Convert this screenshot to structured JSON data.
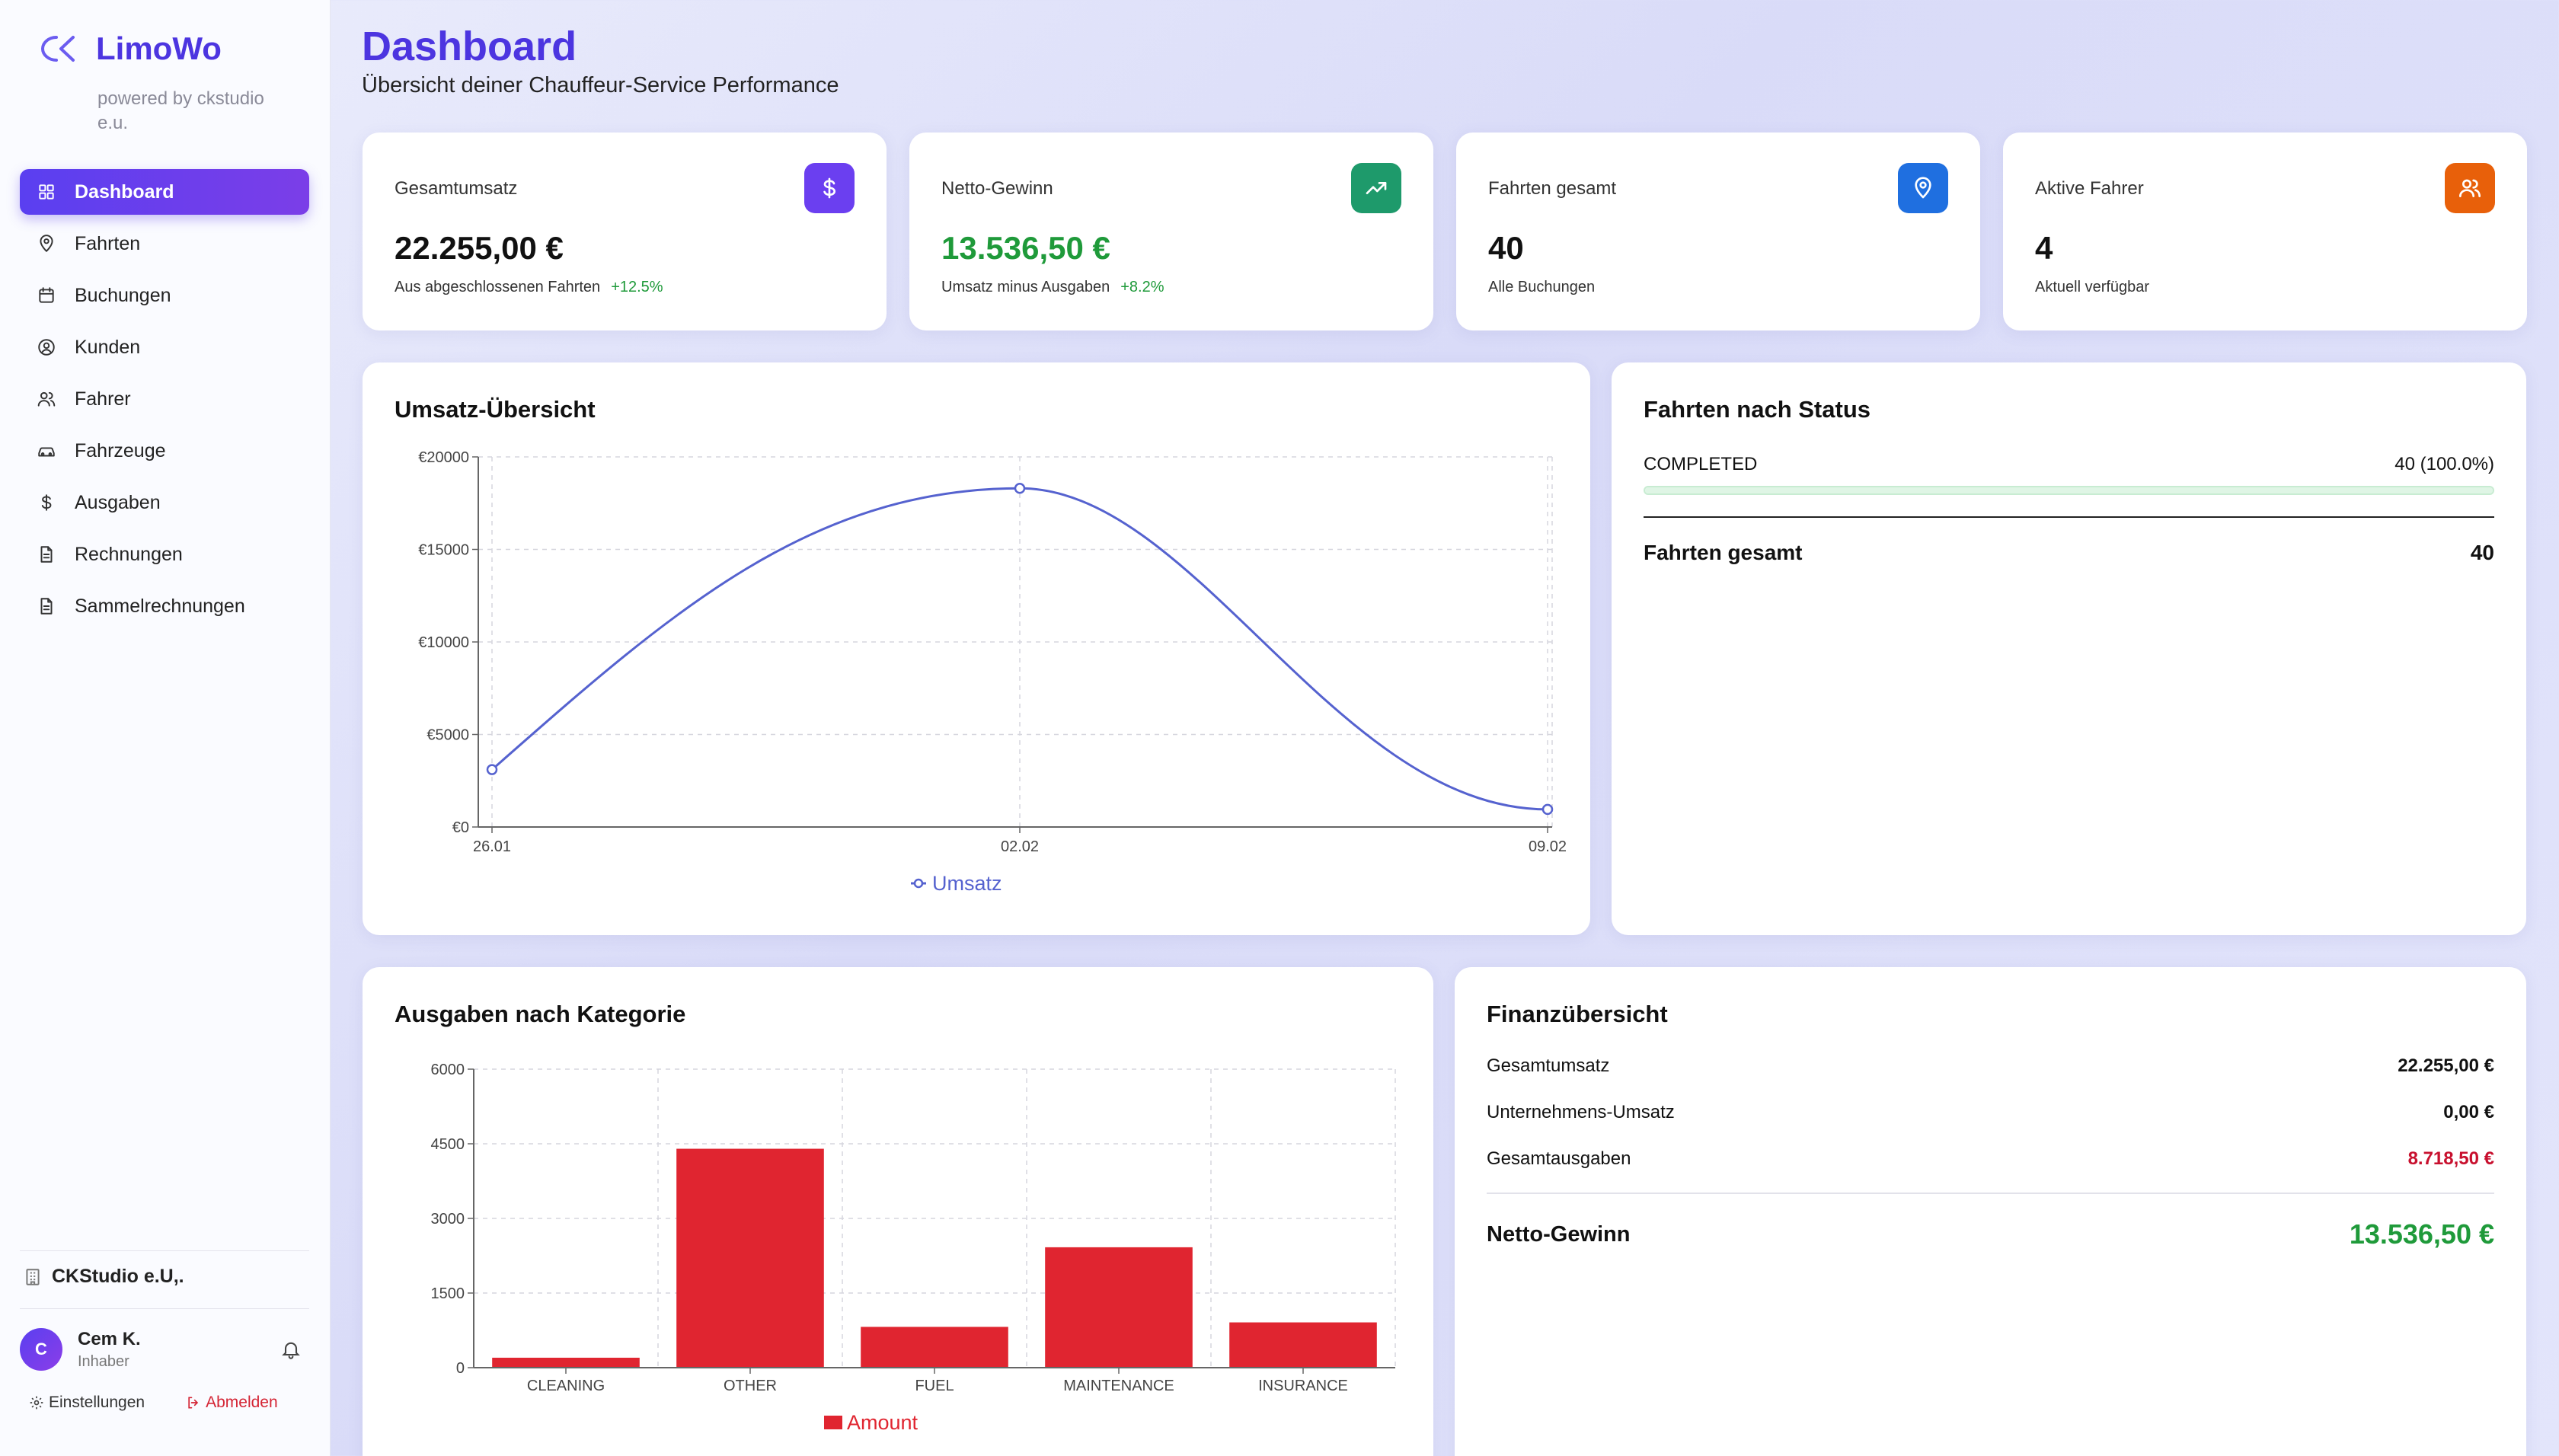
{
  "brand": {
    "name": "LimoWo",
    "sub": "powered by ckstudio e.u."
  },
  "nav": [
    {
      "label": "Dashboard",
      "icon": "grid-icon",
      "active": true
    },
    {
      "label": "Fahrten",
      "icon": "map-pin-icon"
    },
    {
      "label": "Buchungen",
      "icon": "calendar-icon"
    },
    {
      "label": "Kunden",
      "icon": "user-circle-icon"
    },
    {
      "label": "Fahrer",
      "icon": "users-icon"
    },
    {
      "label": "Fahrzeuge",
      "icon": "car-icon"
    },
    {
      "label": "Ausgaben",
      "icon": "dollar-icon"
    },
    {
      "label": "Rechnungen",
      "icon": "file-icon"
    },
    {
      "label": "Sammelrechnungen",
      "icon": "file-icon"
    }
  ],
  "company": "CKStudio e.U,.",
  "user": {
    "initial": "C",
    "name": "Cem K.",
    "role": "Inhaber"
  },
  "footer": {
    "settings": "Einstellungen",
    "logout": "Abmelden"
  },
  "header": {
    "title": "Dashboard",
    "subtitle": "Übersicht deiner Chauffeur-Service Performance"
  },
  "kpis": [
    {
      "label": "Gesamtumsatz",
      "value": "22.255,00 €",
      "note": "Aus abgeschlossenen Fahrten",
      "delta": "+12.5%",
      "icon": "dollar-icon",
      "color": "#6b3ff0"
    },
    {
      "label": "Netto-Gewinn",
      "value": "13.536,50 €",
      "note": "Umsatz minus Ausgaben",
      "delta": "+8.2%",
      "icon": "trending-up-icon",
      "color": "#1e9a6b"
    },
    {
      "label": "Fahrten gesamt",
      "value": "40",
      "note": "Alle Buchungen",
      "delta": "",
      "icon": "map-pin-icon",
      "color": "#1f6fe0"
    },
    {
      "label": "Aktive Fahrer",
      "value": "4",
      "note": "Aktuell verfügbar",
      "delta": "",
      "icon": "users-icon",
      "color": "#e8600a"
    }
  ],
  "revenue": {
    "title": "Umsatz-Übersicht"
  },
  "status": {
    "title": "Fahrten nach Status",
    "label": "COMPLETED",
    "value": "40 (100.0%)",
    "fill": 1.0,
    "total_label": "Fahrten gesamt",
    "total_value": "40"
  },
  "expenses": {
    "title": "Ausgaben nach Kategorie"
  },
  "finance": {
    "title": "Finanzübersicht",
    "rows": [
      {
        "label": "Gesamtumsatz",
        "value": "22.255,00 €"
      },
      {
        "label": "Unternehmens-Umsatz",
        "value": "0,00 €"
      },
      {
        "label": "Gesamtausgaben",
        "value": "8.718,50 €"
      }
    ],
    "net_label": "Netto-Gewinn",
    "net_value": "13.536,50 €"
  },
  "chart_data": [
    {
      "type": "line",
      "title": "Umsatz-Übersicht",
      "x": [
        "26.01",
        "02.02",
        "09.02"
      ],
      "series": [
        {
          "name": "Umsatz",
          "values": [
            3100,
            18300,
            950
          ],
          "color": "#5562cf"
        }
      ],
      "yticks": [
        "€0",
        "€5000",
        "€10000",
        "€15000",
        "€20000"
      ],
      "ylim": [
        0,
        20000
      ],
      "grid": true,
      "legend": "bottom"
    },
    {
      "type": "bar",
      "title": "Ausgaben nach Kategorie",
      "categories": [
        "CLEANING",
        "OTHER",
        "FUEL",
        "MAINTENANCE",
        "INSURANCE"
      ],
      "series": [
        {
          "name": "Amount",
          "values": [
            200,
            4400,
            820,
            2420,
            910
          ],
          "color": "#e02530"
        }
      ],
      "yticks": [
        "0",
        "1500",
        "3000",
        "4500",
        "6000"
      ],
      "ylim": [
        0,
        6000
      ],
      "grid": true,
      "legend": "bottom"
    }
  ]
}
